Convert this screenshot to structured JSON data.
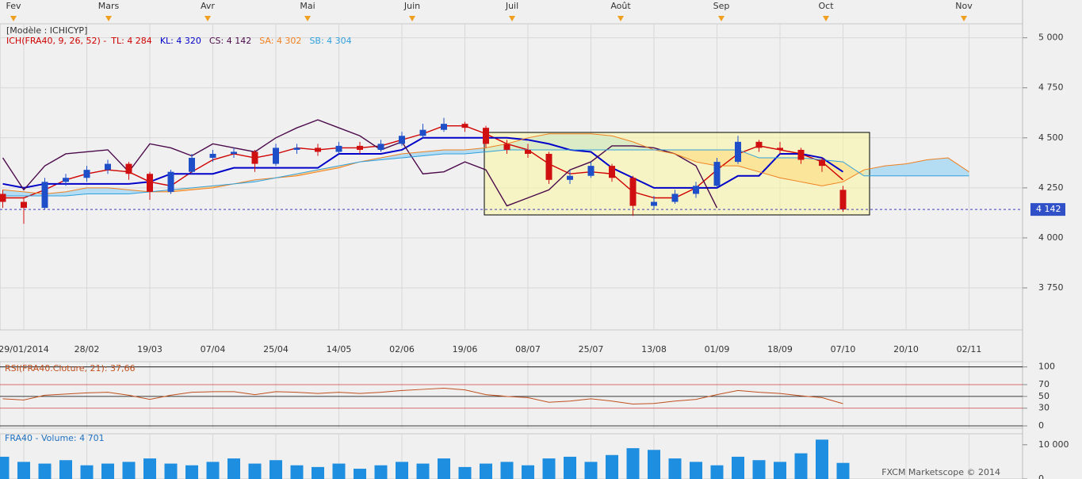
{
  "chart_data": [
    {
      "type": "candlestick",
      "title": "[Modèle : ICHICYP]",
      "subtitle": "ICH(FRA40, 9, 26, 52) -",
      "months": [
        "Fev",
        "Mars",
        "Avr",
        "Mai",
        "Juin",
        "Juil",
        "Août",
        "Sep",
        "Oct",
        "Nov"
      ],
      "categories": [
        null,
        "29/01/2014",
        null,
        null,
        "28/02",
        null,
        null,
        "19/03",
        null,
        null,
        "07/04",
        null,
        null,
        "25/04",
        null,
        null,
        "14/05",
        null,
        null,
        "02/06",
        null,
        null,
        "19/06",
        null,
        null,
        "08/07",
        null,
        null,
        "25/07",
        null,
        null,
        "13/08",
        null,
        null,
        "01/09",
        null,
        null,
        "18/09",
        null,
        null,
        "07/10",
        null,
        null,
        "20/10",
        null,
        null,
        "02/11"
      ],
      "open": [
        4220,
        4180,
        4150,
        4280,
        4300,
        4340,
        4370,
        4320,
        4230,
        4330,
        4400,
        4420,
        4430,
        4370,
        4440,
        4450,
        4430,
        4460,
        4440,
        4470,
        4510,
        4540,
        4570,
        4550,
        4470,
        4440,
        4420,
        4290,
        4310,
        4360,
        4300,
        4160,
        4180,
        4220,
        4260,
        4380,
        4480,
        4450,
        4440,
        4390,
        4240,
        null,
        null,
        null,
        null,
        null,
        null
      ],
      "high": [
        4240,
        4200,
        4300,
        4320,
        4360,
        4390,
        4380,
        4330,
        4340,
        4420,
        4440,
        4450,
        4440,
        4470,
        4470,
        4470,
        4480,
        4480,
        4490,
        4530,
        4570,
        4600,
        4580,
        4560,
        4490,
        4470,
        4430,
        4340,
        4380,
        4370,
        4310,
        4210,
        4240,
        4280,
        4400,
        4510,
        4490,
        4480,
        4450,
        4400,
        4260,
        null,
        null,
        null,
        null,
        null,
        null
      ],
      "low": [
        4150,
        4070,
        4140,
        4260,
        4280,
        4320,
        4290,
        4190,
        4220,
        4320,
        4380,
        4400,
        4330,
        4360,
        4420,
        4410,
        4420,
        4420,
        4430,
        4460,
        4500,
        4530,
        4530,
        4450,
        4420,
        4400,
        4270,
        4270,
        4300,
        4280,
        4110,
        4140,
        4170,
        4200,
        4250,
        4370,
        4430,
        4420,
        4370,
        4330,
        4130,
        null,
        null,
        null,
        null,
        null,
        null
      ],
      "close": [
        4180,
        4150,
        4280,
        4300,
        4340,
        4370,
        4320,
        4230,
        4330,
        4400,
        4420,
        4430,
        4370,
        4450,
        4450,
        4430,
        4460,
        4440,
        4470,
        4510,
        4540,
        4570,
        4550,
        4470,
        4440,
        4420,
        4290,
        4310,
        4360,
        4300,
        4160,
        4180,
        4220,
        4260,
        4380,
        4480,
        4450,
        4440,
        4390,
        4360,
        4142,
        null,
        null,
        null,
        null,
        null,
        null
      ],
      "up_color": "#1f4fc8",
      "down_color": "#d01010",
      "series": [
        {
          "name": "TL: 4 284",
          "color": "#d00000",
          "role": "line",
          "values": [
            4200,
            4200,
            4240,
            4290,
            4320,
            4340,
            4330,
            4280,
            4260,
            4330,
            4390,
            4420,
            4400,
            4420,
            4450,
            4440,
            4450,
            4450,
            4460,
            4490,
            4520,
            4560,
            4560,
            4520,
            4470,
            4440,
            4370,
            4320,
            4330,
            4320,
            4230,
            4200,
            4200,
            4250,
            4340,
            4420,
            4460,
            4440,
            4420,
            4380,
            4290,
            null,
            null,
            null,
            null,
            null,
            null
          ]
        },
        {
          "name": "KL: 4 320",
          "color": "#0000c8",
          "role": "line",
          "values": [
            4270,
            4250,
            4270,
            4270,
            4270,
            4270,
            4270,
            4280,
            4320,
            4320,
            4320,
            4350,
            4350,
            4350,
            4350,
            4350,
            4420,
            4420,
            4420,
            4440,
            4500,
            4500,
            4500,
            4500,
            4500,
            4490,
            4470,
            4440,
            4430,
            4350,
            4300,
            4250,
            4250,
            4250,
            4250,
            4310,
            4310,
            4420,
            4420,
            4400,
            4330,
            null,
            null,
            null,
            null,
            null,
            null
          ]
        },
        {
          "name": "CS: 4 142",
          "color": "#4b0a4b",
          "role": "line",
          "values": [
            4400,
            4240,
            4360,
            4420,
            4430,
            4440,
            4330,
            4470,
            4450,
            4410,
            4470,
            4450,
            4430,
            4500,
            4550,
            4590,
            4550,
            4510,
            4440,
            4480,
            4320,
            4330,
            4380,
            4340,
            4160,
            4200,
            4240,
            4340,
            4380,
            4460,
            4460,
            4450,
            4420,
            4360,
            4150,
            null,
            null,
            null,
            null,
            null,
            null,
            null,
            null,
            null,
            null,
            null,
            null
          ]
        },
        {
          "name": "SA: 4 302",
          "color": "#f08020",
          "role": "cloud-a",
          "values": [
            4240,
            4230,
            4220,
            4230,
            4250,
            4250,
            4240,
            4230,
            4230,
            4240,
            4250,
            4270,
            4290,
            4300,
            4310,
            4330,
            4350,
            4380,
            4400,
            4420,
            4430,
            4440,
            4440,
            4450,
            4470,
            4500,
            4520,
            4520,
            4520,
            4510,
            4480,
            4440,
            4420,
            4380,
            4360,
            4360,
            4330,
            4300,
            4280,
            4260,
            4280,
            4340,
            4360,
            4370,
            4390,
            4400,
            4330
          ]
        },
        {
          "name": "SB: 4 304",
          "color": "#30a0dc",
          "role": "cloud-b",
          "values": [
            4210,
            4210,
            4210,
            4210,
            4220,
            4220,
            4220,
            4230,
            4240,
            4250,
            4260,
            4270,
            4280,
            4300,
            4320,
            4340,
            4360,
            4380,
            4390,
            4400,
            4410,
            4420,
            4420,
            4430,
            4440,
            4440,
            4440,
            4440,
            4440,
            4440,
            4440,
            4440,
            4440,
            4440,
            4440,
            4440,
            4400,
            4400,
            4400,
            4390,
            4380,
            4310,
            4310,
            4310,
            4310,
            4310,
            4310
          ]
        }
      ],
      "cloud_up_color": "#b4dcf2",
      "cloud_down_color": "#f9cf95",
      "last_price": {
        "value": 4142,
        "label": "4 142"
      },
      "ylim": [
        3540,
        5070
      ],
      "yticks": [
        {
          "value": 3750,
          "label": "3 750"
        },
        {
          "value": 4000,
          "label": "4 000"
        },
        {
          "value": 4250,
          "label": "4 250"
        },
        {
          "value": 4500,
          "label": "4 500"
        },
        {
          "value": 4750,
          "label": "4 750"
        },
        {
          "value": 5000,
          "label": "5 000"
        }
      ],
      "grid": true
    },
    {
      "type": "line",
      "title": "RSI(FRA40.Cloture, 21): 37,66",
      "color": "#c0501e",
      "values": [
        46,
        44,
        52,
        54,
        56,
        57,
        52,
        45,
        52,
        57,
        58,
        58,
        53,
        58,
        57,
        55,
        57,
        55,
        57,
        60,
        62,
        64,
        61,
        53,
        50,
        48,
        40,
        42,
        46,
        42,
        37,
        38,
        42,
        45,
        53,
        60,
        57,
        55,
        51,
        48,
        37.66
      ],
      "ylim": [
        -4,
        109
      ],
      "yticks": [
        0,
        30,
        50,
        70,
        100
      ],
      "tick_colors": [
        "#000000",
        "#d04040",
        "#000000",
        "#d04040",
        "#000000"
      ]
    },
    {
      "type": "bar",
      "title": "FRA40 - Volume: 4 701",
      "color": "#1e8ee0",
      "values": [
        6500,
        5000,
        4500,
        5500,
        4000,
        4500,
        5000,
        6000,
        4500,
        4000,
        5000,
        6000,
        4500,
        5500,
        4000,
        3500,
        4500,
        3000,
        4000,
        5000,
        4500,
        6000,
        3500,
        4500,
        5000,
        4000,
        6000,
        6500,
        5000,
        7000,
        9000,
        8500,
        6000,
        5000,
        4000,
        6500,
        5500,
        5000,
        7500,
        11500,
        4701
      ],
      "ylim": [
        0,
        13200
      ],
      "yticks": [
        0,
        {
          "value": 10000,
          "label": "10 000"
        }
      ]
    }
  ],
  "footer": "FXCM Marketscope © 2014"
}
